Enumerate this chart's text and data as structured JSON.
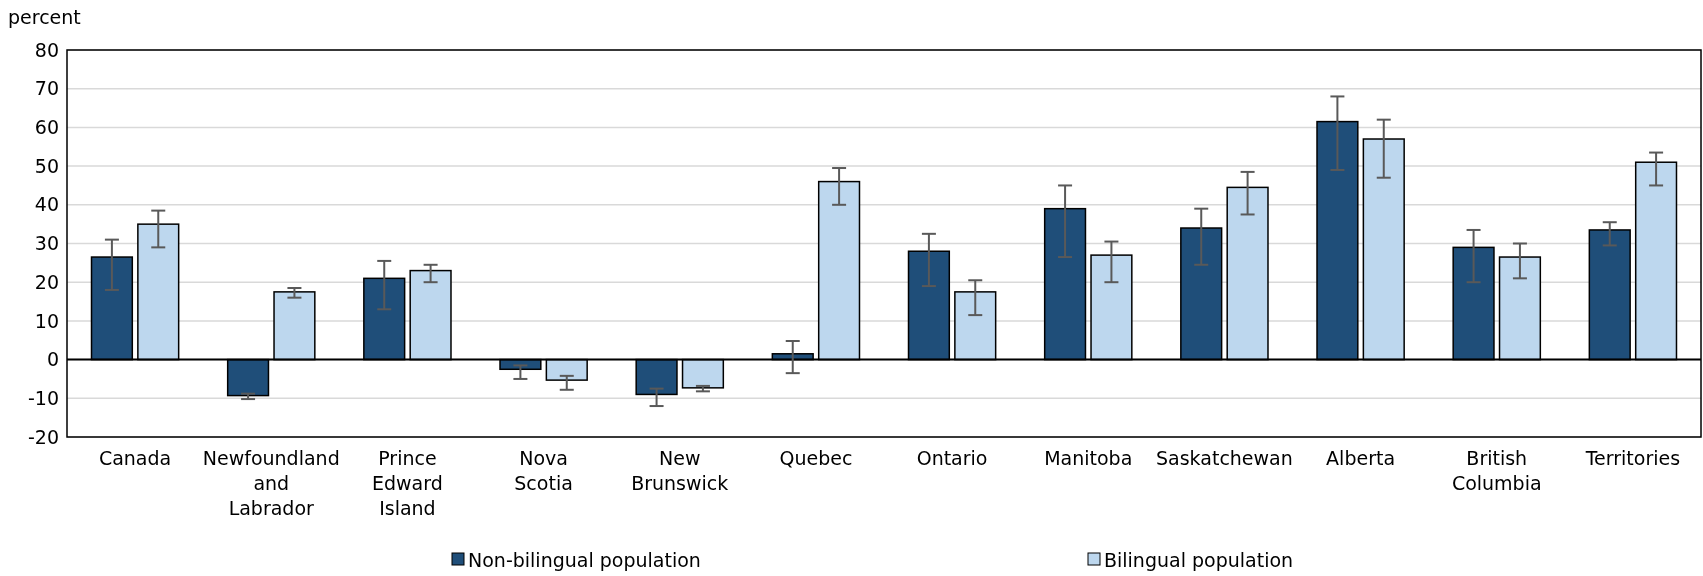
{
  "chart_data": {
    "type": "bar",
    "ylabel": "percent",
    "categories": [
      "Canada",
      "Newfoundland and Labrador",
      "Prince Edward Island",
      "Nova Scotia",
      "New Brunswick",
      "Quebec",
      "Ontario",
      "Manitoba",
      "Saskatchewan",
      "Alberta",
      "British Columbia",
      "Territories"
    ],
    "series": [
      {
        "name": "Non-bilingual population",
        "color": "#1f4e79",
        "values": [
          26.5,
          -9.3,
          21,
          -2.5,
          -9,
          1.5,
          28,
          39,
          34,
          61.5,
          29,
          33.5
        ],
        "errors": [
          [
            18,
            31
          ],
          [
            -10.2,
            -8.8
          ],
          [
            13,
            25.5
          ],
          [
            -5,
            -1.5
          ],
          [
            -12,
            -7.5
          ],
          [
            -3.5,
            4.8
          ],
          [
            19,
            32.5
          ],
          [
            26.5,
            45
          ],
          [
            24.5,
            39
          ],
          [
            49,
            68
          ],
          [
            20,
            33.5
          ],
          [
            29.5,
            35.5
          ]
        ]
      },
      {
        "name": "Bilingual population",
        "color": "#bdd7ee",
        "values": [
          35,
          17.5,
          23,
          -5.3,
          -7.3,
          46,
          17.5,
          27,
          44.5,
          57,
          26.5,
          51
        ],
        "errors": [
          [
            29,
            38.5
          ],
          [
            16,
            18.5
          ],
          [
            20,
            24.5
          ],
          [
            -7.8,
            -4.2
          ],
          [
            -8.2,
            -6.8
          ],
          [
            40,
            49.5
          ],
          [
            11.5,
            20.5
          ],
          [
            20,
            30.5
          ],
          [
            37.5,
            48.5
          ],
          [
            47,
            62
          ],
          [
            21,
            30
          ],
          [
            45,
            53.5
          ]
        ]
      }
    ],
    "ylim": [
      -20,
      80
    ],
    "yticks": [
      -20,
      -10,
      0,
      10,
      20,
      30,
      40,
      50,
      60,
      70,
      80
    ],
    "grid": "y",
    "legend": "bottom"
  }
}
